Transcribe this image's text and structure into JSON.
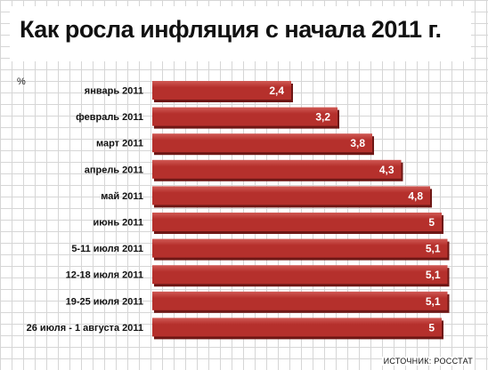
{
  "chart_data": {
    "type": "bar",
    "orientation": "horizontal",
    "title": "Как росла инфляция с начала 2011 г.",
    "unit": "%",
    "categories": [
      "январь 2011",
      "февраль 2011",
      "март 2011",
      "апрель 2011",
      "май 2011",
      "июнь 2011",
      "5-11 июля 2011",
      "12-18 июля 2011",
      "19-25 июля 2011",
      "26 июля - 1 августа 2011"
    ],
    "values": [
      2.4,
      3.2,
      3.8,
      4.3,
      4.8,
      5,
      5.1,
      5.1,
      5.1,
      5
    ],
    "value_labels": [
      "2,4",
      "3,2",
      "3,8",
      "4,3",
      "4,8",
      "5",
      "5,1",
      "5,1",
      "5,1",
      "5"
    ],
    "grid": true,
    "legend": "none"
  },
  "source": "ИСТОЧНИК: РОССТАТ",
  "colors": {
    "bar": "#b5302c",
    "bar_top": "#d05a55",
    "bar_shadow": "#6e1715",
    "grid": "#d6d6d6"
  }
}
